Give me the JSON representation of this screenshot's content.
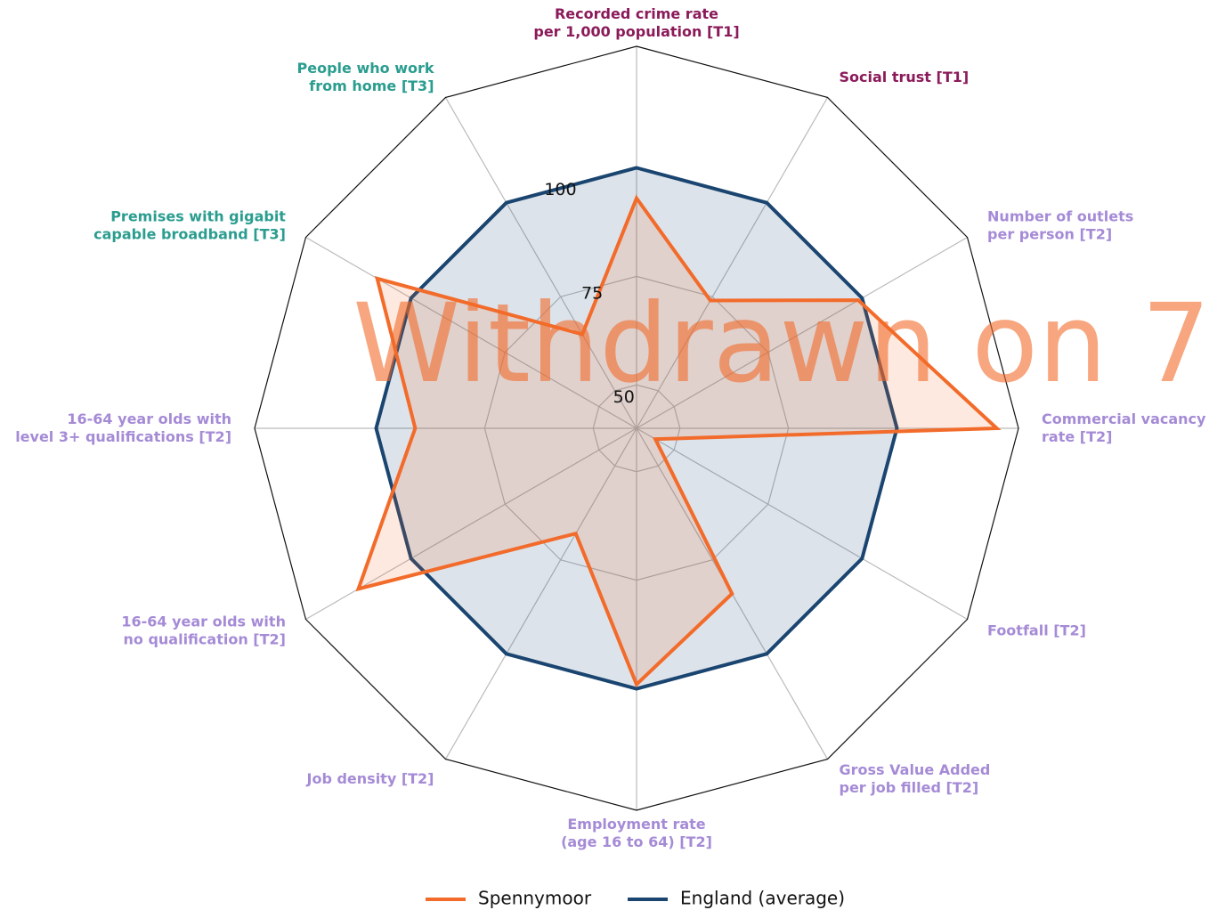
{
  "chart_data": {
    "type": "radar",
    "categories": [
      [
        "Recorded crime rate",
        "per 1,000 population [T1]"
      ],
      [
        "Social trust [T1]"
      ],
      [
        "Number of outlets",
        "per person [T2]"
      ],
      [
        "Commercial vacancy",
        "rate [T2]"
      ],
      [
        "Footfall [T2]"
      ],
      [
        "Gross Value Added",
        "per job filled [T2]"
      ],
      [
        "Employment rate",
        "(age 16 to 64) [T2]"
      ],
      [
        "Job density [T2]"
      ],
      [
        "16-64 year olds with",
        "no qualification [T2]"
      ],
      [
        "16-64 year olds with",
        "level 3+ qualifications [T2]"
      ],
      [
        "Premises with gigabit",
        "capable broadband [T3]"
      ],
      [
        "People who work",
        "from home [T3]"
      ]
    ],
    "category_colors": [
      "#8b1a5a",
      "#8b1a5a",
      "#a58bd6",
      "#a58bd6",
      "#a58bd6",
      "#a58bd6",
      "#a58bd6",
      "#a58bd6",
      "#a58bd6",
      "#a58bd6",
      "#2a9d8f",
      "#2a9d8f"
    ],
    "series": [
      {
        "name": "Spennymoor",
        "color": "#f26b2a",
        "values": [
          93,
          74,
          99,
          123,
          45,
          84,
          99,
          68,
          114,
          91,
          109,
          65
        ]
      },
      {
        "name": "England (average)",
        "color": "#1a4570",
        "values": [
          100,
          100,
          100,
          100,
          100,
          100,
          100,
          100,
          100,
          100,
          100,
          100
        ]
      }
    ],
    "rlim": [
      40,
      128
    ],
    "rticks": [
      50,
      75,
      100
    ],
    "annotation": "Withdrawn on 7",
    "legend": "bottom"
  }
}
